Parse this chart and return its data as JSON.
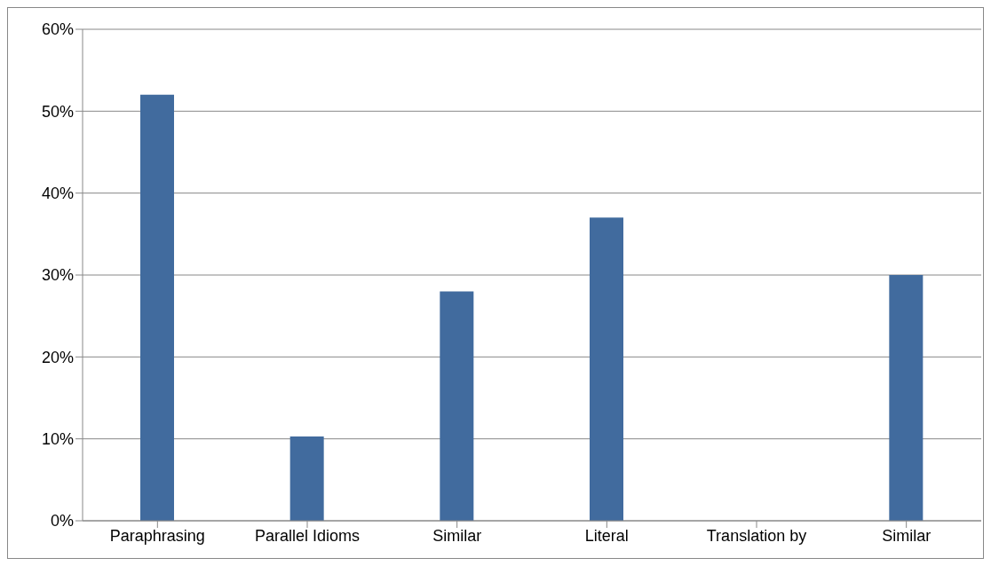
{
  "chart_data": {
    "type": "bar",
    "categories": [
      "Paraphrasing",
      "Parallel Idioms",
      "Similar",
      "Literal",
      "Translation by",
      "Similar"
    ],
    "values": [
      52,
      10.3,
      28,
      37,
      0,
      30
    ],
    "color": "#416b9e",
    "ylim": [
      0,
      60
    ],
    "yticks": [
      {
        "value": 0,
        "label": "0%"
      },
      {
        "value": 10,
        "label": "10%"
      },
      {
        "value": 20,
        "label": "20%"
      },
      {
        "value": 30,
        "label": "30%"
      },
      {
        "value": 40,
        "label": "40%"
      },
      {
        "value": 50,
        "label": "50%"
      },
      {
        "value": 60,
        "label": "60%"
      }
    ],
    "grid": "y",
    "legend": false
  }
}
